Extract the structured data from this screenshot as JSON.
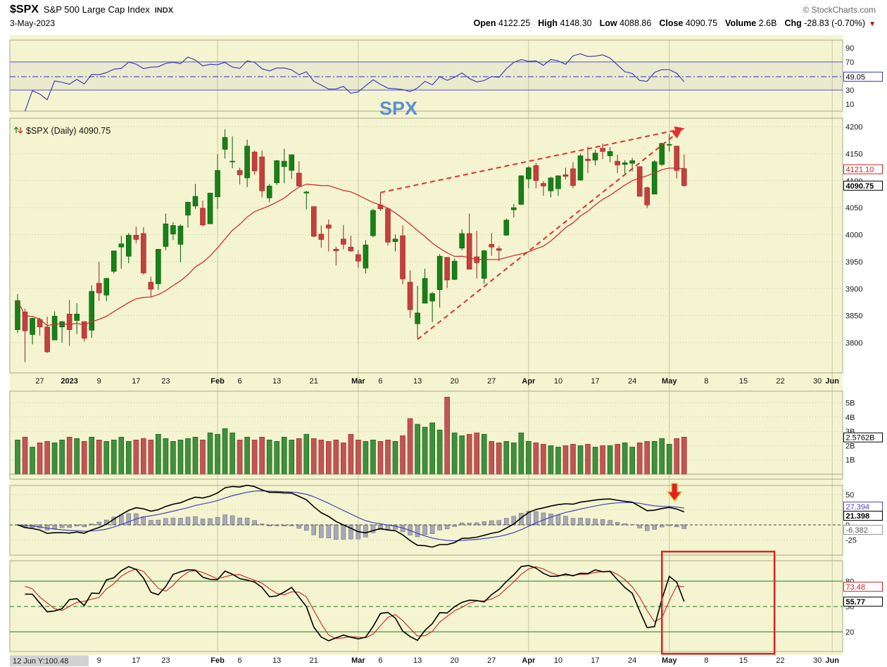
{
  "header": {
    "symbol": "$SPX",
    "title": "S&P 500 Large Cap Index",
    "exchange": "INDX",
    "credit": "© StockCharts.com",
    "date": "3-May-2023",
    "change_icon": "▼",
    "quote": [
      {
        "label": "Open",
        "value": "4122.25"
      },
      {
        "label": "High",
        "value": "4148.30"
      },
      {
        "label": "Low",
        "value": "4088.86"
      },
      {
        "label": "Close",
        "value": "4090.75"
      },
      {
        "label": "Volume",
        "value": "2.6B"
      },
      {
        "label": "Chg",
        "value": "-28.83 (-0.70%)"
      }
    ]
  },
  "price_panel": {
    "legend": "$SPX (Daily) 4090.75"
  },
  "labels": {
    "rsi": "49.05",
    "ma": "4121.10",
    "close": "4090.75",
    "volume": "2.5762B",
    "macd_signal": "27.394",
    "macd": "21.398",
    "macd_hist": "-6.382",
    "stoch_d": "73.48",
    "stoch_k": "55.77"
  },
  "x_axis": {
    "hint": "12 Jun Y:100.48"
  },
  "colors": {
    "background": "#f4f4d0",
    "panel_border": "#a8a888",
    "grid": "#c8c8a0",
    "up": "#188018",
    "up_border": "#0a5a0a",
    "down": "#c4403c",
    "down_border": "#992222",
    "volume_up": "#3f8f3f",
    "volume_down": "#c05555",
    "ma": "#cc3333",
    "rsi_line": "#3333bb",
    "rsi_level": "#5050c8",
    "rsi_band": "rgba(90,90,200,0.06)",
    "macd_line": "#000000",
    "macd_signal": "#4444bb",
    "macd_hist": "#a8a8b8",
    "macd_hist_border": "#666677",
    "stoch_k": "#000000",
    "stoch_d": "#cc2222",
    "stoch_level": "#1f7a1f",
    "trendline": "#e23030",
    "annotation": "#e02020",
    "watermark": "#5b8fd4"
  },
  "chart_data": {
    "type": "candlestick",
    "symbol": "$SPX",
    "timeframe": "Daily",
    "last_close": 4090.75,
    "y_axis": {
      "min": 3757,
      "max": 4213,
      "ticks": [
        4200,
        4150,
        4100,
        4050,
        4000,
        3950,
        3900,
        3850,
        3800
      ]
    },
    "volume_ticks": [
      "5B",
      "4B",
      "3B",
      "2B",
      "1B"
    ],
    "candles": [
      [
        3824,
        3890,
        3818,
        3878
      ],
      [
        3857,
        3863,
        3764,
        3822
      ],
      [
        3815,
        3846,
        3797,
        3845
      ],
      [
        3843,
        3846,
        3813,
        3829
      ],
      [
        3829,
        3848,
        3781,
        3783
      ],
      [
        3805,
        3858,
        3805,
        3849
      ],
      [
        3829,
        3840,
        3800,
        3839
      ],
      [
        3853,
        3879,
        3794,
        3824
      ],
      [
        3841,
        3873,
        3816,
        3853
      ],
      [
        3839,
        3839,
        3802,
        3808
      ],
      [
        3823,
        3906,
        3809,
        3895
      ],
      [
        3910,
        3950,
        3877,
        3892
      ],
      [
        3888,
        3920,
        3877,
        3919
      ],
      [
        3932,
        3970,
        3928,
        3970
      ],
      [
        3977,
        3998,
        3937,
        3983
      ],
      [
        3960,
        4003,
        3947,
        3999
      ],
      [
        3999,
        4015,
        3984,
        3991
      ],
      [
        4002,
        4014,
        3926,
        3929
      ],
      [
        3912,
        3922,
        3885,
        3899
      ],
      [
        3909,
        3972,
        3898,
        3973
      ],
      [
        3978,
        4039,
        3971,
        4020
      ],
      [
        4001,
        4023,
        3990,
        4017
      ],
      [
        3982,
        4019,
        3949,
        4016
      ],
      [
        4036,
        4061,
        4013,
        4060
      ],
      [
        4053,
        4094,
        4048,
        4071
      ],
      [
        4049,
        4063,
        4015,
        4018
      ],
      [
        4020,
        4077,
        4020,
        4077
      ],
      [
        4070,
        4149,
        4048,
        4119
      ],
      [
        4158,
        4195,
        4141,
        4180
      ],
      [
        4136,
        4182,
        4123,
        4136
      ],
      [
        4119,
        4124,
        4093,
        4111
      ],
      [
        4105,
        4176,
        4088,
        4164
      ],
      [
        4153,
        4156,
        4111,
        4118
      ],
      [
        4144,
        4156,
        4069,
        4081
      ],
      [
        4068,
        4094,
        4060,
        4090
      ],
      [
        4096,
        4138,
        4092,
        4137
      ],
      [
        4126,
        4159,
        4095,
        4136
      ],
      [
        4119,
        4148,
        4103,
        4148
      ],
      [
        4114,
        4136,
        4089,
        4090
      ],
      [
        4077,
        4081,
        4047,
        4079
      ],
      [
        4052,
        4052,
        3995,
        3997
      ],
      [
        4001,
        4017,
        3976,
        3991
      ],
      [
        4018,
        4028,
        3969,
        4012
      ],
      [
        3973,
        3978,
        3943,
        3970
      ],
      [
        3992,
        4018,
        3973,
        3982
      ],
      [
        3977,
        3998,
        3968,
        3970
      ],
      [
        3963,
        3971,
        3939,
        3951
      ],
      [
        3938,
        3990,
        3928,
        3981
      ],
      [
        3998,
        4048,
        3995,
        4045
      ],
      [
        4055,
        4078,
        4044,
        4048
      ],
      [
        4048,
        4050,
        3980,
        3986
      ],
      [
        3987,
        4000,
        3969,
        3992
      ],
      [
        3998,
        4017,
        3908,
        3918
      ],
      [
        3912,
        3934,
        3846,
        3861
      ],
      [
        3835,
        3905,
        3808,
        3855
      ],
      [
        3873,
        3937,
        3873,
        3919
      ],
      [
        3877,
        3894,
        3838,
        3891
      ],
      [
        3898,
        3964,
        3865,
        3960
      ],
      [
        3958,
        3958,
        3901,
        3916
      ],
      [
        3917,
        3956,
        3916,
        3951
      ],
      [
        3975,
        4010,
        3971,
        4002
      ],
      [
        4002,
        4039,
        3936,
        3936
      ],
      [
        3959,
        4007,
        3919,
        3948
      ],
      [
        3919,
        3972,
        3909,
        3970
      ],
      [
        3982,
        4003,
        3961,
        3977
      ],
      [
        3974,
        3979,
        3951,
        3971
      ],
      [
        3999,
        4030,
        3998,
        4027
      ],
      [
        4046,
        4057,
        4032,
        4050
      ],
      [
        4056,
        4110,
        4056,
        4109
      ],
      [
        4103,
        4127,
        4086,
        4124
      ],
      [
        4128,
        4133,
        4086,
        4100
      ],
      [
        4095,
        4099,
        4072,
        4090
      ],
      [
        4081,
        4107,
        4069,
        4105
      ],
      [
        4085,
        4110,
        4072,
        4109
      ],
      [
        4111,
        4124,
        4102,
        4108
      ],
      [
        4122,
        4134,
        4086,
        4091
      ],
      [
        4101,
        4150,
        4100,
        4146
      ],
      [
        4140,
        4163,
        4114,
        4137
      ],
      [
        4138,
        4157,
        4128,
        4151
      ],
      [
        4160,
        4169,
        4140,
        4154
      ],
      [
        4146,
        4162,
        4134,
        4154
      ],
      [
        4136,
        4148,
        4114,
        4129
      ],
      [
        4130,
        4138,
        4113,
        4133
      ],
      [
        4132,
        4142,
        4117,
        4137
      ],
      [
        4126,
        4126,
        4071,
        4071
      ],
      [
        4087,
        4089,
        4049,
        4055
      ],
      [
        4075,
        4138,
        4075,
        4135
      ],
      [
        4130,
        4170,
        4127,
        4169
      ],
      [
        4166,
        4186,
        4154,
        4167
      ],
      [
        4164,
        4164,
        4104,
        4119
      ],
      [
        4122.25,
        4148.3,
        4088.86,
        4090.75
      ]
    ],
    "volume_B": [
      2.4,
      2.6,
      1.9,
      2.2,
      2.3,
      2.2,
      2.4,
      2.6,
      2.5,
      2.3,
      2.6,
      2.4,
      2.3,
      2.4,
      2.6,
      2.3,
      2.4,
      2.5,
      2.4,
      2.8,
      2.5,
      2.3,
      2.4,
      2.5,
      2.6,
      2.4,
      2.9,
      2.8,
      3.2,
      2.9,
      2.4,
      2.6,
      2.4,
      2.6,
      2.4,
      2.3,
      2.6,
      2.4,
      2.5,
      2.8,
      2.5,
      2.4,
      2.3,
      2.4,
      2.2,
      2.8,
      2.4,
      2.3,
      2.4,
      2.3,
      2.4,
      2.3,
      2.7,
      3.9,
      3.5,
      3.3,
      3.6,
      3.1,
      5.4,
      2.9,
      2.7,
      2.8,
      2.9,
      2.8,
      2.3,
      2.2,
      2.3,
      2.2,
      2.9,
      2.3,
      2.2,
      2.1,
      2.0,
      1.9,
      2.0,
      2.1,
      2.0,
      2.1,
      1.9,
      2.0,
      2.0,
      2.1,
      2.2,
      1.9,
      2.2,
      2.3,
      2.3,
      2.5,
      2.1,
      2.5,
      2.6
    ],
    "indicators": {
      "rsi": {
        "period": 14,
        "last": 49.05,
        "overbought": 70,
        "oversold": 30,
        "ticks": [
          90,
          70,
          30,
          10
        ]
      },
      "sma": {
        "period": 20,
        "last": 4121.1
      },
      "macd": {
        "fast": 12,
        "slow": 26,
        "signal": 9,
        "last": 21.398,
        "signal_last": 27.394,
        "hist_last": -6.382,
        "ticks": [
          50,
          25,
          0,
          -25
        ]
      },
      "stoch": {
        "k": 14,
        "smooth": 3,
        "d": 3,
        "k_last": 55.77,
        "d_last": 73.48,
        "ticks": [
          80,
          50,
          20
        ]
      }
    },
    "x_ticks": [
      {
        "label": "27",
        "i": 3
      },
      {
        "label": "2023",
        "i": 7,
        "bold": true
      },
      {
        "label": "9",
        "i": 11
      },
      {
        "label": "17",
        "i": 16
      },
      {
        "label": "23",
        "i": 20
      },
      {
        "label": "Feb",
        "i": 27,
        "bold": true
      },
      {
        "label": "6",
        "i": 30
      },
      {
        "label": "13",
        "i": 35
      },
      {
        "label": "21",
        "i": 40
      },
      {
        "label": "Mar",
        "i": 46,
        "bold": true
      },
      {
        "label": "6",
        "i": 49
      },
      {
        "label": "13",
        "i": 54
      },
      {
        "label": "20",
        "i": 59
      },
      {
        "label": "27",
        "i": 64
      },
      {
        "label": "Apr",
        "i": 69,
        "bold": true
      },
      {
        "label": "10",
        "i": 73
      },
      {
        "label": "17",
        "i": 78
      },
      {
        "label": "24",
        "i": 83
      },
      {
        "label": "May",
        "i": 88,
        "bold": true
      },
      {
        "label": "8",
        "i": 93
      },
      {
        "label": "15",
        "i": 98
      },
      {
        "label": "22",
        "i": 103
      },
      {
        "label": "30",
        "i": 108
      },
      {
        "label": "Jun",
        "i": 110,
        "bold": true
      }
    ],
    "month_gridlines": [
      27,
      46,
      69,
      88,
      110
    ],
    "annotations": {
      "watermark": "SPX",
      "trendlines": [
        {
          "from_i": 54,
          "from_v": 3806,
          "to_i": 89.5,
          "to_v": 4193
        },
        {
          "from_i": 49,
          "from_v": 4078,
          "to_i": 89.8,
          "to_v": 4196
        }
      ],
      "down_arrow": {
        "i": 88.7
      },
      "red_box": {
        "from_i": 87,
        "to_i": 102.2,
        "from_v": 115,
        "to_v": -6
      }
    }
  }
}
